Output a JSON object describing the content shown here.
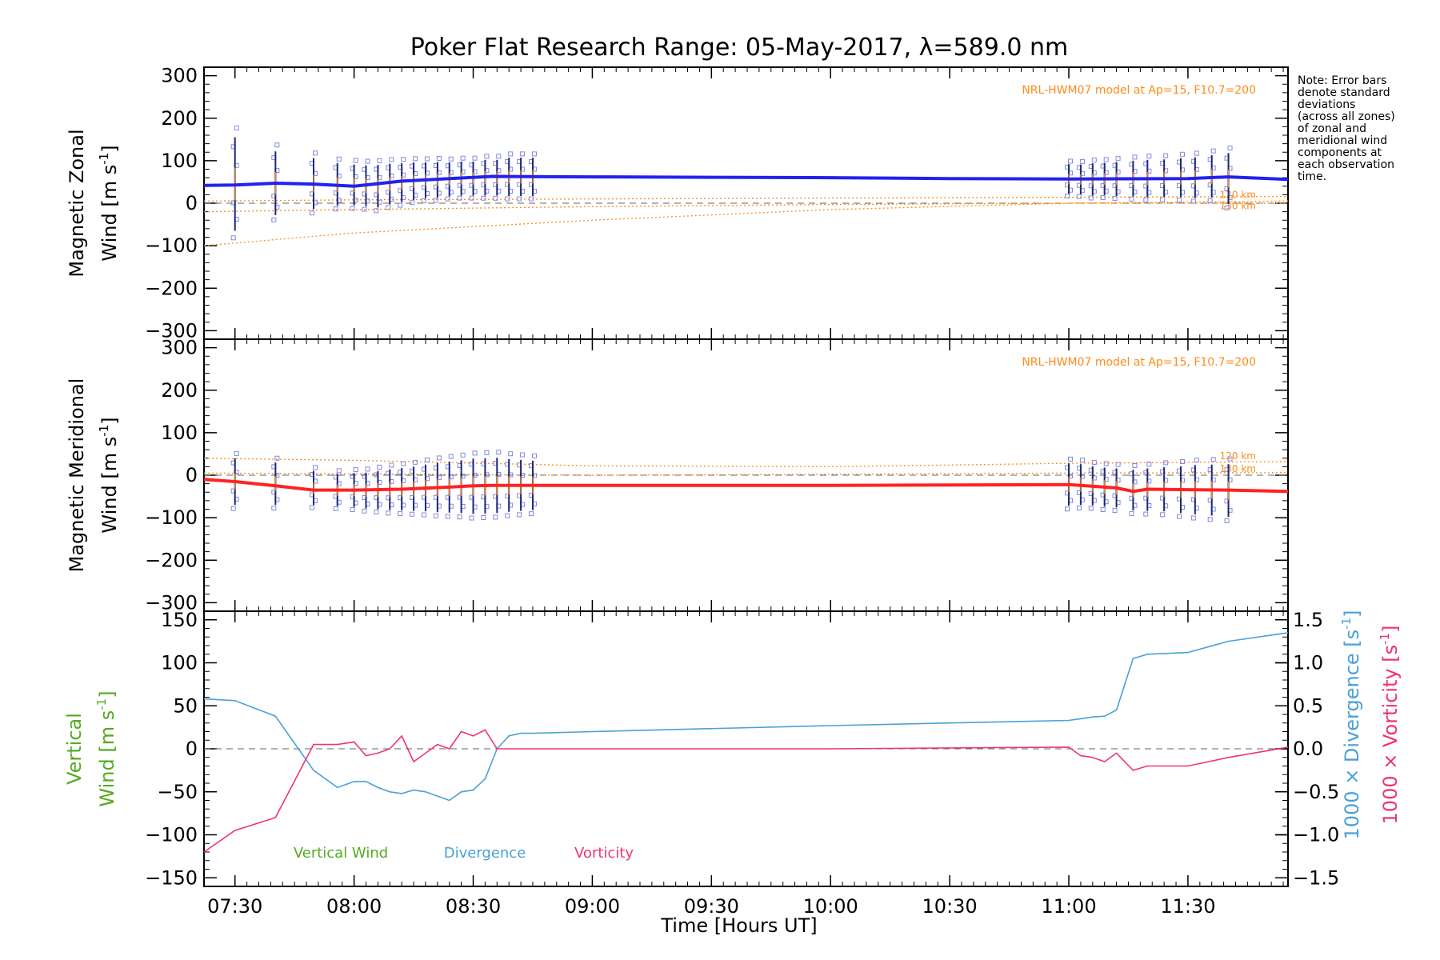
{
  "figure": {
    "title": "Poker Flat Research Range: 05-May-2017, λ=589.0 nm",
    "xlabel": "Time [Hours UT]",
    "note_lines": [
      "Note: Error bars",
      "denote standard",
      "deviations",
      "(across all zones)",
      "of zonal and",
      "meridional wind",
      "components at",
      "each observation",
      "time."
    ],
    "colors": {
      "zonal": "#2222ee",
      "meridional": "#ff2222",
      "vertical": "#55aa22",
      "divergence": "#4aa0d8",
      "vorticity": "#ee3377",
      "model": "#ff8c1a",
      "samples": "#8888dd",
      "errorbar_zonal": "#1a2a7a"
    }
  },
  "chart_data": [
    {
      "type": "line",
      "panel": "zonal",
      "ylabel": "Magnetic Zonal Wind [m s⁻¹]",
      "ylabel_line1": "Magnetic Zonal",
      "ylabel_line2": "Wind [m s",
      "ylabel_sup": "-1",
      "ylabel_close": "]",
      "model_label": "NRL-HWM07 model at Ap=15, F10.7=200",
      "height_labels": [
        "120 km",
        "130 km"
      ],
      "xlim": [
        7.37,
        11.92
      ],
      "ylim": [
        -320,
        320
      ],
      "xticks": [
        "07:30",
        "08:00",
        "08:30",
        "09:00",
        "09:30",
        "10:00",
        "10:30",
        "11:00",
        "11:30"
      ],
      "yticks": [
        "300",
        "200",
        "100",
        "0",
        "−100",
        "−200",
        "−300"
      ],
      "series": [
        {
          "name": "",
          "x": [
            7.37,
            7.5,
            7.67,
            7.83,
            8.0,
            8.2,
            8.4,
            8.58,
            9.0,
            9.5,
            10.0,
            10.5,
            11.0,
            11.5,
            11.67,
            11.92
          ],
          "y": [
            42,
            43,
            47,
            45,
            40,
            52,
            58,
            63,
            62,
            61,
            60,
            58,
            57,
            58,
            62,
            56
          ]
        }
      ],
      "observations": {
        "x": [
          7.5,
          7.67,
          7.83,
          7.93,
          8.0,
          8.05,
          8.1,
          8.15,
          8.2,
          8.25,
          8.3,
          8.35,
          8.4,
          8.45,
          8.5,
          8.55,
          8.6,
          8.65,
          8.7,
          8.75,
          11.0,
          11.05,
          11.1,
          11.15,
          11.2,
          11.27,
          11.33,
          11.4,
          11.47,
          11.53,
          11.6,
          11.67
        ],
        "mean": [
          45,
          47,
          46,
          44,
          43,
          41,
          40,
          45,
          48,
          52,
          54,
          55,
          56,
          58,
          58,
          60,
          60,
          62,
          62,
          62,
          57,
          56,
          56,
          57,
          57,
          58,
          58,
          59,
          60,
          60,
          63,
          58
        ],
        "std": [
          110,
          75,
          60,
          50,
          48,
          48,
          50,
          48,
          46,
          44,
          42,
          42,
          40,
          40,
          40,
          42,
          42,
          45,
          45,
          45,
          35,
          35,
          38,
          38,
          40,
          42,
          44,
          44,
          46,
          48,
          50,
          60
        ]
      },
      "model_lines": [
        {
          "label": "120 km",
          "x": [
            7.37,
            8.0,
            9.0,
            10.0,
            11.0,
            11.92
          ],
          "y": [
            -100,
            -70,
            -40,
            -15,
            0,
            5
          ]
        },
        {
          "label": "130 km",
          "x": [
            7.37,
            8.0,
            9.0,
            10.0,
            11.0,
            11.92
          ],
          "y": [
            -20,
            -15,
            -8,
            -3,
            0,
            0
          ]
        },
        {
          "label": "",
          "x": [
            7.37,
            8.0,
            9.0,
            10.0,
            11.0,
            11.92
          ],
          "y": [
            5,
            8,
            10,
            12,
            14,
            16
          ]
        }
      ],
      "grid": false
    },
    {
      "type": "line",
      "panel": "meridional",
      "ylabel": "Magnetic Meridional Wind [m s⁻¹]",
      "ylabel_line1": "Magnetic Meridional",
      "ylabel_line2": "Wind [m s",
      "ylabel_sup": "-1",
      "ylabel_close": "]",
      "model_label": "NRL-HWM07 model at Ap=15, F10.7=200",
      "height_labels": [
        "120 km",
        "130 km"
      ],
      "xlim": [
        7.37,
        11.92
      ],
      "ylim": [
        -320,
        320
      ],
      "yticks": [
        "300",
        "200",
        "100",
        "0",
        "−100",
        "−200",
        "−300"
      ],
      "series": [
        {
          "name": "",
          "x": [
            7.37,
            7.5,
            7.67,
            7.83,
            8.0,
            8.2,
            8.4,
            8.5,
            8.58,
            9.0,
            10.0,
            11.0,
            11.2,
            11.27,
            11.33,
            11.5,
            11.67,
            11.92
          ],
          "y": [
            -10,
            -15,
            -25,
            -35,
            -35,
            -33,
            -28,
            -25,
            -24,
            -24,
            -24,
            -22,
            -30,
            -38,
            -33,
            -34,
            -35,
            -38
          ]
        }
      ],
      "observations": {
        "x": [
          7.5,
          7.67,
          7.83,
          7.93,
          8.0,
          8.05,
          8.1,
          8.15,
          8.2,
          8.25,
          8.3,
          8.35,
          8.4,
          8.45,
          8.5,
          8.55,
          8.6,
          8.65,
          8.7,
          8.75,
          11.0,
          11.05,
          11.1,
          11.15,
          11.2,
          11.27,
          11.33,
          11.4,
          11.47,
          11.53,
          11.6,
          11.67
        ],
        "mean": [
          -15,
          -20,
          -30,
          -35,
          -35,
          -36,
          -35,
          -34,
          -33,
          -32,
          -30,
          -29,
          -28,
          -27,
          -26,
          -25,
          -24,
          -24,
          -24,
          -24,
          -22,
          -22,
          -25,
          -28,
          -30,
          -35,
          -34,
          -33,
          -34,
          -34,
          -35,
          -36
        ],
        "std": [
          55,
          50,
          40,
          38,
          40,
          42,
          45,
          48,
          50,
          52,
          55,
          58,
          60,
          62,
          65,
          65,
          65,
          62,
          60,
          58,
          50,
          48,
          46,
          46,
          46,
          48,
          50,
          52,
          55,
          58,
          60,
          62
        ]
      },
      "model_lines": [
        {
          "label": "120 km",
          "x": [
            7.37,
            8.0,
            9.0,
            10.0,
            11.0,
            11.92
          ],
          "y": [
            40,
            35,
            22,
            20,
            28,
            32
          ]
        },
        {
          "label": "130 km",
          "x": [
            7.37,
            8.0,
            9.0,
            10.0,
            11.0,
            11.92
          ],
          "y": [
            5,
            3,
            0,
            2,
            5,
            6
          ]
        }
      ],
      "grid": false
    },
    {
      "type": "line",
      "panel": "vertical",
      "ylabel_left": "Vertical Wind [m s⁻¹]",
      "ylabel_left_line1": "Vertical",
      "ylabel_left_line2": "Wind [m s",
      "ylabel_right1": "1000 × Divergence [s⁻¹]",
      "ylabel_right1_main": "1000 × Divergence [s",
      "ylabel_right2": "1000 × Vorticity [s⁻¹]",
      "ylabel_right2_main": "1000 × Vorticity [s",
      "ylabel_sup": "-1",
      "ylabel_close": "]",
      "xlim": [
        7.37,
        11.92
      ],
      "ylim": [
        -160,
        160
      ],
      "ylim_right": [
        -1.6,
        1.6
      ],
      "yticks": [
        "150",
        "100",
        "50",
        "0",
        "−50",
        "−100",
        "−150"
      ],
      "yticks_right": [
        "1.5",
        "1.0",
        "0.5",
        "0.0",
        "−0.5",
        "−1.0",
        "−1.5"
      ],
      "legend": [
        "Vertical Wind",
        "Divergence",
        "Vorticity"
      ],
      "series": [
        {
          "name": "Divergence",
          "x": [
            7.37,
            7.5,
            7.67,
            7.83,
            7.93,
            8.0,
            8.05,
            8.1,
            8.15,
            8.2,
            8.25,
            8.3,
            8.35,
            8.4,
            8.45,
            8.5,
            8.55,
            8.6,
            8.65,
            8.7,
            8.75,
            9.0,
            10.0,
            11.0,
            11.05,
            11.1,
            11.15,
            11.2,
            11.27,
            11.33,
            11.5,
            11.67,
            11.92
          ],
          "y": [
            0.58,
            0.56,
            0.38,
            -0.25,
            -0.45,
            -0.38,
            -0.38,
            -0.45,
            -0.5,
            -0.52,
            -0.48,
            -0.5,
            -0.55,
            -0.6,
            -0.5,
            -0.48,
            -0.35,
            0.0,
            0.15,
            0.18,
            0.18,
            0.2,
            0.27,
            0.33,
            0.35,
            0.37,
            0.38,
            0.45,
            1.05,
            1.1,
            1.12,
            1.25,
            1.35
          ]
        },
        {
          "name": "Vorticity",
          "x": [
            7.37,
            7.5,
            7.67,
            7.83,
            7.93,
            8.0,
            8.05,
            8.1,
            8.15,
            8.2,
            8.25,
            8.3,
            8.35,
            8.4,
            8.45,
            8.5,
            8.55,
            8.6,
            8.65,
            8.7,
            8.75,
            9.0,
            10.0,
            11.0,
            11.05,
            11.1,
            11.15,
            11.2,
            11.27,
            11.33,
            11.5,
            11.67,
            11.92
          ],
          "y": [
            -1.2,
            -0.95,
            -0.8,
            0.05,
            0.05,
            0.08,
            -0.08,
            -0.05,
            0.0,
            0.15,
            -0.15,
            -0.05,
            0.05,
            0.0,
            0.2,
            0.15,
            0.22,
            0.0,
            0.0,
            0.0,
            0.0,
            0.0,
            0.0,
            0.02,
            -0.08,
            -0.1,
            -0.15,
            -0.05,
            -0.25,
            -0.2,
            -0.2,
            -0.1,
            0.02
          ]
        }
      ],
      "grid": false
    }
  ]
}
